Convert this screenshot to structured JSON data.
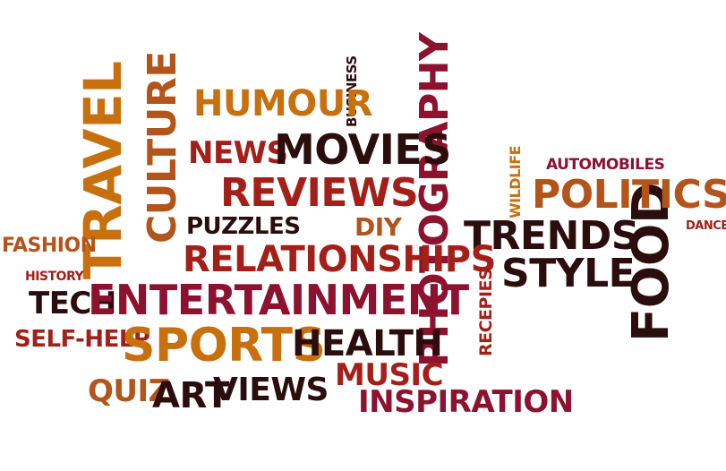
{
  "colors": {
    "background": "#ffffff",
    "orange": "#c8700e",
    "dark_orange": "#b3541a",
    "red": "#a3201a",
    "crimson": "#8c1230",
    "dark": "#2b0d0d"
  },
  "words": {
    "travel": "TRAVEL",
    "culture": "CULTURE",
    "humour": "HUMOUR",
    "business": "BUSINESS",
    "news": "NEWS",
    "movies": "MOVIES",
    "photography": "PHOTOGRAPHY",
    "reviews": "REVIEWS",
    "wildlife": "WILDLIFE",
    "automobiles": "AUTOMOBILES",
    "politics": "POLITICS",
    "food": "FOOD",
    "dance": "DANCE",
    "fashion": "FASHION",
    "puzzles": "PUZZLES",
    "diy": "DIY",
    "trends": "TRENDS",
    "relationships": "RELATIONSHIPS",
    "style": "STYLE",
    "history": "HISTORY",
    "tech": "TECH",
    "entertainment": "ENTERTAINMENT",
    "recepies": "RECEPIES",
    "self_help": "SELF-HELP",
    "sports": "SPORTS",
    "health": "HEALTH",
    "music": "MUSIC",
    "quiz": "QUIZ",
    "art": "ART",
    "views": "VIEWS",
    "inspiration": "INSPIRATION"
  }
}
